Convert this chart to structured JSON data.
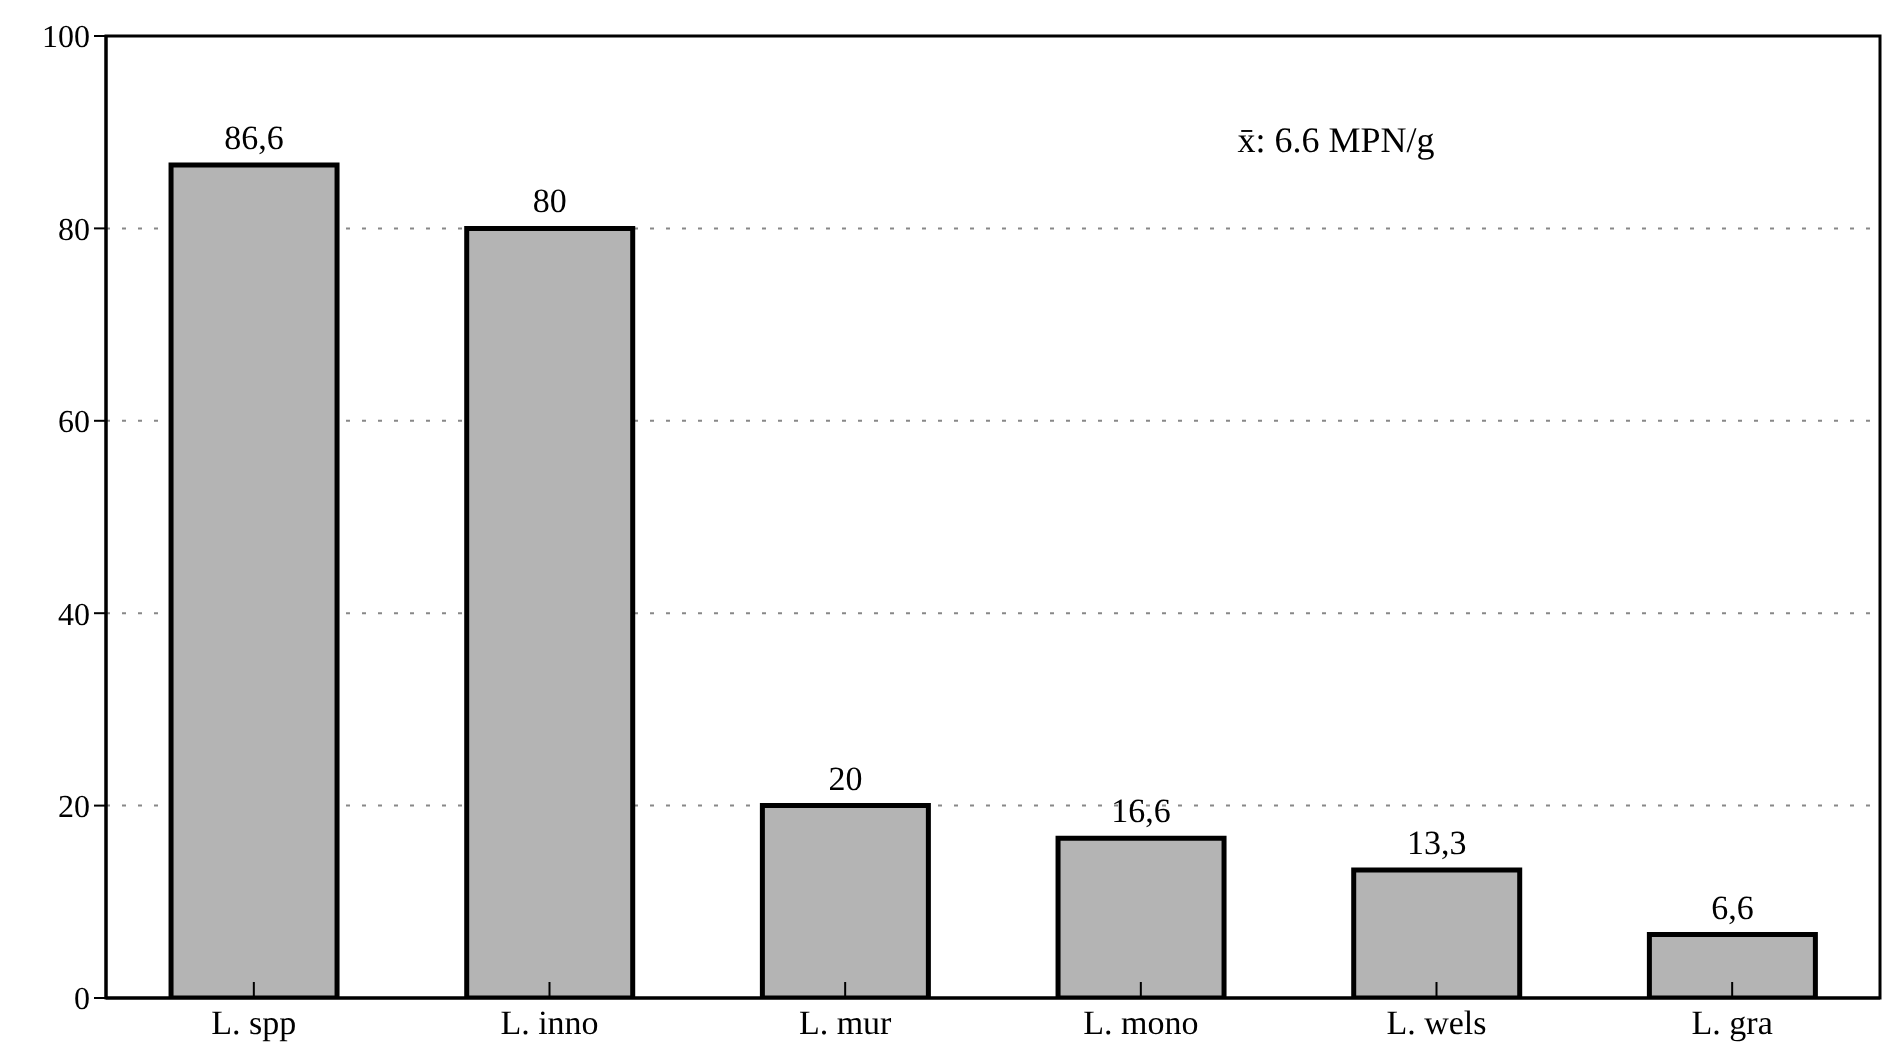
{
  "chart_data": {
    "type": "bar",
    "categories": [
      "L. spp",
      "L. inno",
      "L. mur",
      "L. mono",
      "L. wels",
      "L. gra"
    ],
    "values": [
      86.6,
      80,
      20,
      16.6,
      13.3,
      6.6
    ],
    "value_labels": [
      "86,6",
      "80",
      "20",
      "16,6",
      "13,3",
      "6,6"
    ],
    "color": "#b4b4b4",
    "ylim": [
      0,
      100
    ],
    "yticks": [
      0,
      20,
      40,
      60,
      80,
      100
    ],
    "grid": "y",
    "annotations": [
      "x̄: 6.6 MPN/g"
    ]
  }
}
